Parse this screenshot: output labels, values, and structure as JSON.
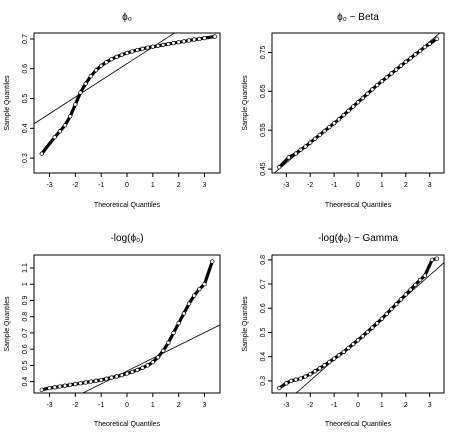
{
  "chart_data": [
    {
      "type": "scatter",
      "title": "ϕ₀",
      "xlabel": "Theoretical Quantiles",
      "ylabel": "Sample Quantiles",
      "xlim": [
        -3.6,
        3.6
      ],
      "ylim": [
        0.25,
        0.72
      ],
      "xticks": [
        -3,
        -2,
        -1,
        0,
        1,
        2,
        3
      ],
      "yticks": [
        0.3,
        0.4,
        0.5,
        0.6,
        0.7
      ],
      "ref_line": {
        "slope": 0.056,
        "intercept": 0.617
      },
      "qq_points": [
        [
          -3.3,
          0.315
        ],
        [
          -2.8,
          0.37
        ],
        [
          -2.6,
          0.39
        ],
        [
          -2.4,
          0.41
        ],
        [
          -2.2,
          0.44
        ],
        [
          -2.0,
          0.48
        ],
        [
          -1.8,
          0.52
        ],
        [
          -1.6,
          0.55
        ],
        [
          -1.4,
          0.575
        ],
        [
          -1.2,
          0.595
        ],
        [
          -1.0,
          0.61
        ],
        [
          -0.8,
          0.622
        ],
        [
          -0.6,
          0.632
        ],
        [
          -0.4,
          0.64
        ],
        [
          -0.2,
          0.647
        ],
        [
          0.0,
          0.653
        ],
        [
          0.2,
          0.658
        ],
        [
          0.4,
          0.663
        ],
        [
          0.6,
          0.667
        ],
        [
          0.8,
          0.671
        ],
        [
          1.0,
          0.674
        ],
        [
          1.2,
          0.677
        ],
        [
          1.4,
          0.68
        ],
        [
          1.6,
          0.683
        ],
        [
          1.8,
          0.686
        ],
        [
          2.0,
          0.689
        ],
        [
          2.2,
          0.692
        ],
        [
          2.4,
          0.695
        ],
        [
          2.6,
          0.698
        ],
        [
          2.8,
          0.7
        ],
        [
          3.0,
          0.703
        ],
        [
          3.4,
          0.708
        ]
      ]
    },
    {
      "type": "scatter",
      "title": "ϕ₀ ~ Beta",
      "xlabel": "Theoretical Quantiles",
      "ylabel": "Sample Quantiles",
      "xlim": [
        -3.6,
        3.6
      ],
      "ylim": [
        0.44,
        0.8
      ],
      "xticks": [
        -3,
        -2,
        -1,
        0,
        1,
        2,
        3
      ],
      "yticks": [
        0.45,
        0.55,
        0.65,
        0.75
      ],
      "ref_line": {
        "slope": 0.052,
        "intercept": 0.622
      },
      "qq_points": [
        [
          -3.3,
          0.455
        ],
        [
          -2.9,
          0.48
        ],
        [
          -2.6,
          0.49
        ],
        [
          -2.4,
          0.5
        ],
        [
          -2.2,
          0.508
        ],
        [
          -2.0,
          0.518
        ],
        [
          -1.8,
          0.528
        ],
        [
          -1.6,
          0.538
        ],
        [
          -1.4,
          0.548
        ],
        [
          -1.2,
          0.558
        ],
        [
          -1.0,
          0.568
        ],
        [
          -0.8,
          0.578
        ],
        [
          -0.6,
          0.589
        ],
        [
          -0.4,
          0.6
        ],
        [
          -0.2,
          0.611
        ],
        [
          0.0,
          0.622
        ],
        [
          0.2,
          0.633
        ],
        [
          0.4,
          0.644
        ],
        [
          0.6,
          0.655
        ],
        [
          0.8,
          0.666
        ],
        [
          1.0,
          0.676
        ],
        [
          1.2,
          0.686
        ],
        [
          1.4,
          0.696
        ],
        [
          1.6,
          0.706
        ],
        [
          1.8,
          0.716
        ],
        [
          2.0,
          0.726
        ],
        [
          2.2,
          0.735
        ],
        [
          2.4,
          0.745
        ],
        [
          2.6,
          0.754
        ],
        [
          2.8,
          0.764
        ],
        [
          3.0,
          0.772
        ],
        [
          3.3,
          0.785
        ]
      ]
    },
    {
      "type": "scatter",
      "title": "-log(ϕ₀)",
      "xlabel": "Theoretical Quantiles",
      "ylabel": "Sample Quantiles",
      "xlim": [
        -3.6,
        3.6
      ],
      "ylim": [
        0.33,
        1.18
      ],
      "xticks": [
        -3,
        -2,
        -1,
        0,
        1,
        2,
        3
      ],
      "yticks": [
        0.4,
        0.5,
        0.6,
        0.7,
        0.8,
        0.9,
        1.0,
        1.1
      ],
      "ref_line": {
        "slope": 0.079,
        "intercept": 0.465
      },
      "qq_points": [
        [
          -3.3,
          0.35
        ],
        [
          -3.0,
          0.36
        ],
        [
          -2.8,
          0.365
        ],
        [
          -2.6,
          0.37
        ],
        [
          -2.4,
          0.375
        ],
        [
          -2.2,
          0.38
        ],
        [
          -2.0,
          0.385
        ],
        [
          -1.8,
          0.39
        ],
        [
          -1.6,
          0.395
        ],
        [
          -1.4,
          0.4
        ],
        [
          -1.2,
          0.405
        ],
        [
          -1.0,
          0.41
        ],
        [
          -0.8,
          0.418
        ],
        [
          -0.6,
          0.425
        ],
        [
          -0.4,
          0.432
        ],
        [
          -0.2,
          0.44
        ],
        [
          0.0,
          0.45
        ],
        [
          0.2,
          0.46
        ],
        [
          0.4,
          0.472
        ],
        [
          0.6,
          0.485
        ],
        [
          0.8,
          0.5
        ],
        [
          1.0,
          0.52
        ],
        [
          1.2,
          0.55
        ],
        [
          1.4,
          0.59
        ],
        [
          1.6,
          0.64
        ],
        [
          1.8,
          0.7
        ],
        [
          2.0,
          0.76
        ],
        [
          2.2,
          0.82
        ],
        [
          2.4,
          0.88
        ],
        [
          2.6,
          0.93
        ],
        [
          2.8,
          0.97
        ],
        [
          3.0,
          1.0
        ],
        [
          3.3,
          1.14
        ]
      ]
    },
    {
      "type": "scatter",
      "title": "-log(ϕ₀) ~ Gamma",
      "xlabel": "Theoretical Quantiles",
      "ylabel": "Sample Quantiles",
      "xlim": [
        -3.6,
        3.6
      ],
      "ylim": [
        0.25,
        0.82
      ],
      "xticks": [
        -3,
        -2,
        -1,
        0,
        1,
        2,
        3
      ],
      "yticks": [
        0.3,
        0.4,
        0.5,
        0.6,
        0.7,
        0.8
      ],
      "ref_line": {
        "slope": 0.087,
        "intercept": 0.475
      },
      "qq_points": [
        [
          -3.3,
          0.27
        ],
        [
          -3.0,
          0.29
        ],
        [
          -2.8,
          0.3
        ],
        [
          -2.6,
          0.305
        ],
        [
          -2.4,
          0.31
        ],
        [
          -2.2,
          0.318
        ],
        [
          -2.0,
          0.328
        ],
        [
          -1.8,
          0.34
        ],
        [
          -1.6,
          0.352
        ],
        [
          -1.4,
          0.365
        ],
        [
          -1.2,
          0.378
        ],
        [
          -1.0,
          0.392
        ],
        [
          -0.8,
          0.406
        ],
        [
          -0.6,
          0.42
        ],
        [
          -0.4,
          0.436
        ],
        [
          -0.2,
          0.452
        ],
        [
          0.0,
          0.468
        ],
        [
          0.2,
          0.485
        ],
        [
          0.4,
          0.502
        ],
        [
          0.6,
          0.52
        ],
        [
          0.8,
          0.538
        ],
        [
          1.0,
          0.557
        ],
        [
          1.2,
          0.577
        ],
        [
          1.4,
          0.597
        ],
        [
          1.6,
          0.617
        ],
        [
          1.8,
          0.637
        ],
        [
          2.0,
          0.657
        ],
        [
          2.2,
          0.677
        ],
        [
          2.4,
          0.697
        ],
        [
          2.6,
          0.717
        ],
        [
          2.8,
          0.735
        ],
        [
          3.1,
          0.8
        ],
        [
          3.3,
          0.805
        ]
      ]
    }
  ]
}
